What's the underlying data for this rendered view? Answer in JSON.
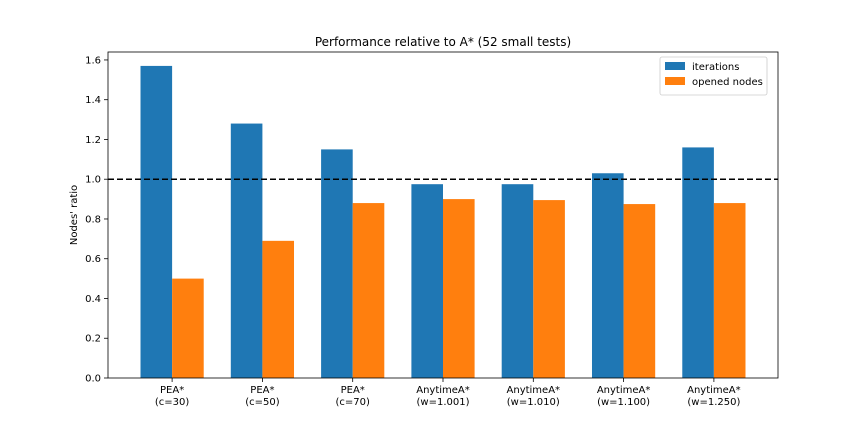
{
  "chart_data": {
    "type": "bar",
    "title": "Performance relative to A* (52 small tests)",
    "xlabel": "",
    "ylabel": "Nodes' ratio",
    "ylim": [
      0,
      1.64
    ],
    "yticks": [
      "0.0",
      "0.2",
      "0.4",
      "0.6",
      "0.8",
      "1.0",
      "1.2",
      "1.4",
      "1.6"
    ],
    "categories": [
      [
        "PEA*",
        "(c=30)"
      ],
      [
        "PEA*",
        "(c=50)"
      ],
      [
        "PEA*",
        "(c=70)"
      ],
      [
        "AnytimeA*",
        "(w=1.001)"
      ],
      [
        "AnytimeA*",
        "(w=1.010)"
      ],
      [
        "AnytimeA*",
        "(w=1.100)"
      ],
      [
        "AnytimeA*",
        "(w=1.250)"
      ]
    ],
    "series": [
      {
        "name": "iterations",
        "color": "#1f77b4",
        "values": [
          1.57,
          1.28,
          1.15,
          0.975,
          0.975,
          1.03,
          1.16
        ]
      },
      {
        "name": "opened nodes",
        "color": "#ff7f0e",
        "values": [
          0.5,
          0.69,
          0.88,
          0.9,
          0.895,
          0.875,
          0.88
        ]
      }
    ],
    "reference_line": {
      "y": 1.0,
      "style": "dashed",
      "color": "#000000"
    },
    "legend": "top-right",
    "grid": false
  }
}
